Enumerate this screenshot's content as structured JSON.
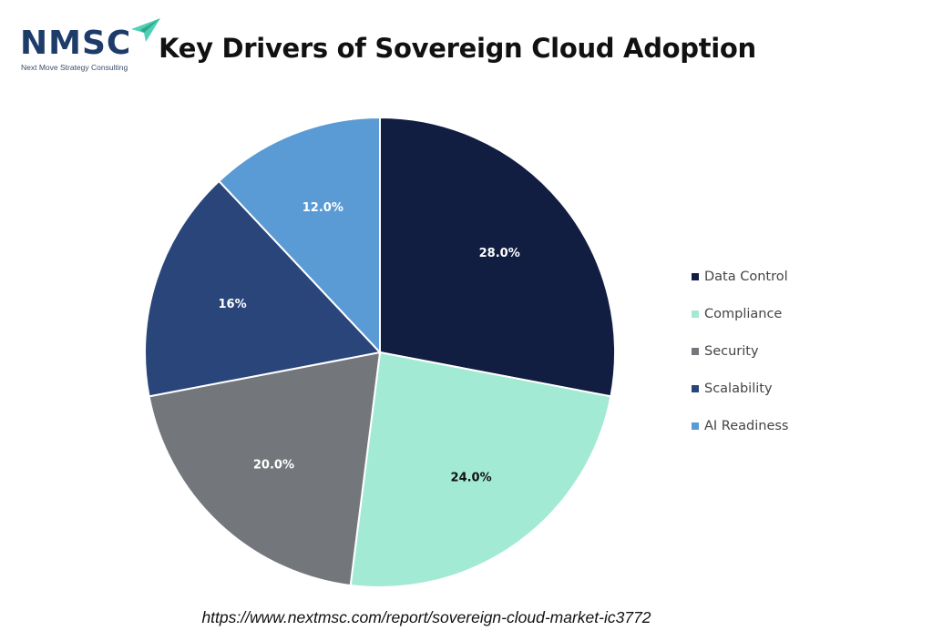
{
  "logo": {
    "text": "NMSC",
    "subtitle": "Next Move Strategy Consulting",
    "accent_color": "#4fd1b5"
  },
  "chart_data": {
    "type": "pie",
    "title": "Key Drivers of Sovereign Cloud Adoption",
    "legend_position": "right",
    "slices": [
      {
        "label": "Data Control",
        "value": 28.0,
        "value_label": "28.0%",
        "color": "#111e42",
        "label_color": "#ffffff"
      },
      {
        "label": "Compliance",
        "value": 24.0,
        "value_label": "24.0%",
        "color": "#a3ead4",
        "label_color": "#111111"
      },
      {
        "label": "Security",
        "value": 20.0,
        "value_label": "20.0%",
        "color": "#73777b",
        "label_color": "#ffffff"
      },
      {
        "label": "Scalability",
        "value": 16.0,
        "value_label": "16%",
        "color": "#2a4579",
        "label_color": "#ffffff"
      },
      {
        "label": "AI Readiness",
        "value": 12.0,
        "value_label": "12.0%",
        "color": "#5b9bd5",
        "label_color": "#ffffff"
      }
    ]
  },
  "source": {
    "url": "https://www.nextmsc.com/report/sovereign-cloud-market-ic3772"
  }
}
